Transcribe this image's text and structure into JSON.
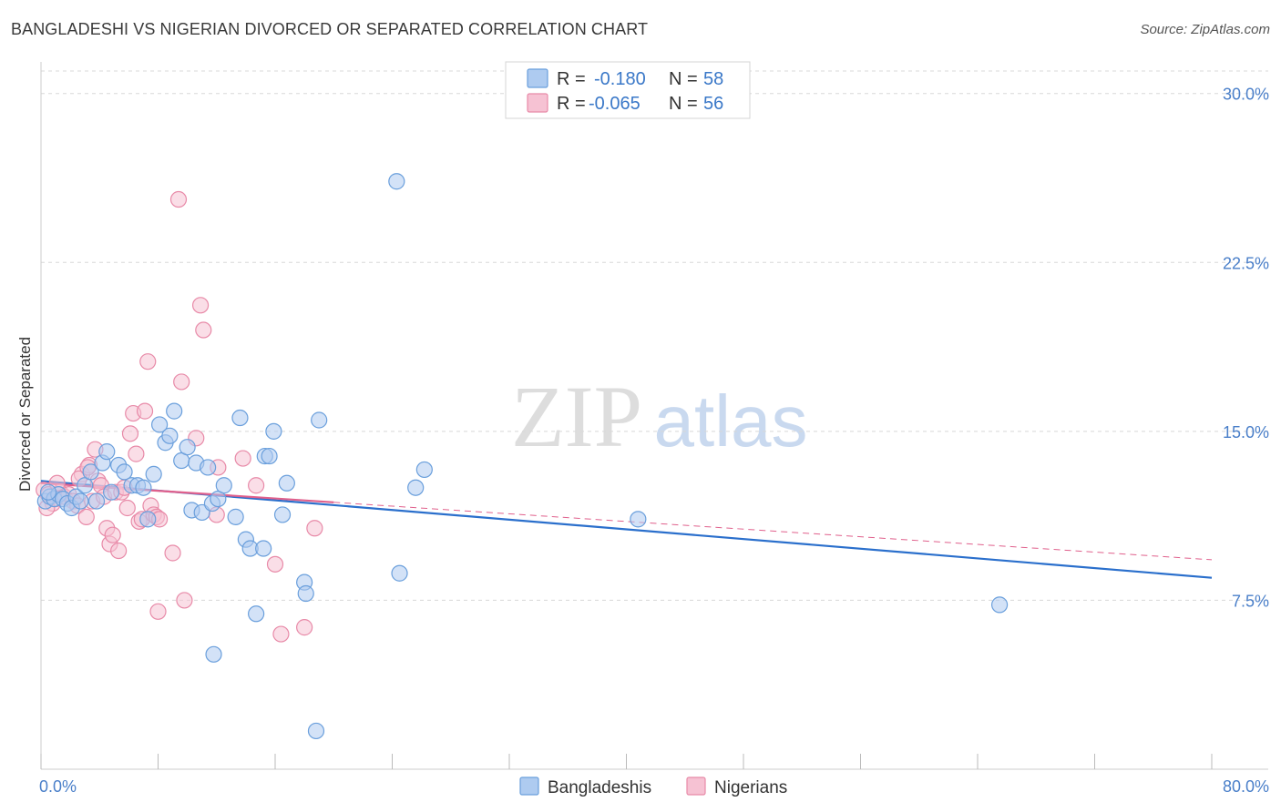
{
  "title": "BANGLADESHI VS NIGERIAN DIVORCED OR SEPARATED CORRELATION CHART",
  "source": "Source: ZipAtlas.com",
  "watermark": {
    "zip": "ZIP",
    "atlas": "atlas"
  },
  "colors": {
    "bangladeshi": "#6a9fdc",
    "bangladeshi_fill": "#aecbf0",
    "bangladeshi_line": "#2a6fcc",
    "nigerian": "#e88aa8",
    "nigerian_fill": "#f6c2d3",
    "nigerian_line": "#e0608c",
    "text_blue": "#3a78c8",
    "grid": "#d8d8d8"
  },
  "legend_top": {
    "rows": [
      {
        "r_label": "R =",
        "r_value": "-0.180",
        "n_label": "N =",
        "n_value": "58"
      },
      {
        "r_label": "R =",
        "r_value": "-0.065",
        "n_label": "N =",
        "n_value": "56"
      }
    ]
  },
  "legend_bottom": {
    "items": [
      "Bangladeshis",
      "Nigerians"
    ]
  },
  "chart_data": {
    "type": "scatter",
    "title": "BANGLADESHI VS NIGERIAN DIVORCED OR SEPARATED CORRELATION CHART",
    "xlabel": "",
    "ylabel": "Divorced or Separated",
    "xlim": [
      0,
      80
    ],
    "ylim": [
      0,
      31
    ],
    "x_tick_labels": [
      "0.0%",
      "80.0%"
    ],
    "y_ticks": [
      7.5,
      15.0,
      22.5,
      30.0
    ],
    "y_tick_labels": [
      "7.5%",
      "15.0%",
      "22.5%",
      "30.0%"
    ],
    "grid": true,
    "series": [
      {
        "name": "Bangladeshis",
        "r": -0.18,
        "n": 58,
        "trend": {
          "x": [
            0,
            80
          ],
          "y": [
            12.8,
            8.5
          ]
        },
        "points": [
          [
            0.3,
            11.9
          ],
          [
            0.6,
            12.1
          ],
          [
            0.9,
            12.0
          ],
          [
            1.2,
            12.2
          ],
          [
            1.5,
            12.0
          ],
          [
            1.8,
            11.8
          ],
          [
            2.1,
            11.6
          ],
          [
            2.4,
            12.1
          ],
          [
            2.7,
            11.9
          ],
          [
            3.0,
            12.6
          ],
          [
            3.4,
            13.2
          ],
          [
            3.8,
            11.9
          ],
          [
            4.2,
            13.6
          ],
          [
            4.5,
            14.1
          ],
          [
            4.8,
            12.3
          ],
          [
            5.3,
            13.5
          ],
          [
            5.7,
            13.2
          ],
          [
            6.2,
            12.6
          ],
          [
            6.6,
            12.6
          ],
          [
            7.0,
            12.5
          ],
          [
            7.3,
            11.1
          ],
          [
            7.7,
            13.1
          ],
          [
            8.1,
            15.3
          ],
          [
            8.5,
            14.5
          ],
          [
            8.8,
            14.8
          ],
          [
            9.1,
            15.9
          ],
          [
            9.6,
            13.7
          ],
          [
            10.0,
            14.3
          ],
          [
            10.3,
            11.5
          ],
          [
            10.6,
            13.6
          ],
          [
            11.0,
            11.4
          ],
          [
            11.4,
            13.4
          ],
          [
            11.7,
            11.8
          ],
          [
            12.1,
            12.0
          ],
          [
            12.5,
            12.6
          ],
          [
            11.8,
            5.1
          ],
          [
            13.3,
            11.2
          ],
          [
            13.6,
            15.6
          ],
          [
            14.0,
            10.2
          ],
          [
            14.3,
            9.8
          ],
          [
            14.7,
            6.9
          ],
          [
            15.2,
            9.8
          ],
          [
            15.3,
            13.9
          ],
          [
            15.6,
            13.9
          ],
          [
            15.9,
            15.0
          ],
          [
            16.5,
            11.3
          ],
          [
            16.8,
            12.7
          ],
          [
            18.0,
            8.3
          ],
          [
            18.1,
            7.8
          ],
          [
            18.8,
            1.7
          ],
          [
            19.0,
            15.5
          ],
          [
            24.3,
            26.1
          ],
          [
            24.5,
            8.7
          ],
          [
            25.6,
            12.5
          ],
          [
            26.2,
            13.3
          ],
          [
            40.8,
            11.1
          ],
          [
            65.5,
            7.3
          ],
          [
            0.5,
            12.3
          ]
        ]
      },
      {
        "name": "Nigerians",
        "r": -0.065,
        "n": 56,
        "trend": {
          "x": [
            0,
            80
          ],
          "y": [
            12.7,
            9.3
          ]
        },
        "trend_solid_until_x": 20,
        "points": [
          [
            0.2,
            12.4
          ],
          [
            0.5,
            12.2
          ],
          [
            0.8,
            11.8
          ],
          [
            1.0,
            12.0
          ],
          [
            1.3,
            12.3
          ],
          [
            1.6,
            12.1
          ],
          [
            1.9,
            12.2
          ],
          [
            2.2,
            11.9
          ],
          [
            2.5,
            11.7
          ],
          [
            2.8,
            13.1
          ],
          [
            3.1,
            11.2
          ],
          [
            3.3,
            13.5
          ],
          [
            3.5,
            11.9
          ],
          [
            3.7,
            14.2
          ],
          [
            3.9,
            12.8
          ],
          [
            4.1,
            12.6
          ],
          [
            4.3,
            12.1
          ],
          [
            4.5,
            10.7
          ],
          [
            4.7,
            10.0
          ],
          [
            4.9,
            10.4
          ],
          [
            5.1,
            12.3
          ],
          [
            5.3,
            9.7
          ],
          [
            5.5,
            12.3
          ],
          [
            5.7,
            12.5
          ],
          [
            5.9,
            11.6
          ],
          [
            6.1,
            14.9
          ],
          [
            6.3,
            15.8
          ],
          [
            6.5,
            14.0
          ],
          [
            6.7,
            11.0
          ],
          [
            6.9,
            11.1
          ],
          [
            7.1,
            15.9
          ],
          [
            7.3,
            18.1
          ],
          [
            7.5,
            11.7
          ],
          [
            7.7,
            11.3
          ],
          [
            7.9,
            11.2
          ],
          [
            8.1,
            11.1
          ],
          [
            8.0,
            7.0
          ],
          [
            9.0,
            9.6
          ],
          [
            9.4,
            25.3
          ],
          [
            9.6,
            17.2
          ],
          [
            9.8,
            7.5
          ],
          [
            10.6,
            14.7
          ],
          [
            10.9,
            20.6
          ],
          [
            11.1,
            19.5
          ],
          [
            12.1,
            13.4
          ],
          [
            12.0,
            11.3
          ],
          [
            13.8,
            13.8
          ],
          [
            14.7,
            12.6
          ],
          [
            16.0,
            9.1
          ],
          [
            16.4,
            6.0
          ],
          [
            18.0,
            6.3
          ],
          [
            18.7,
            10.7
          ],
          [
            1.1,
            12.7
          ],
          [
            2.6,
            12.9
          ],
          [
            3.2,
            13.4
          ],
          [
            0.4,
            11.6
          ]
        ]
      }
    ]
  }
}
